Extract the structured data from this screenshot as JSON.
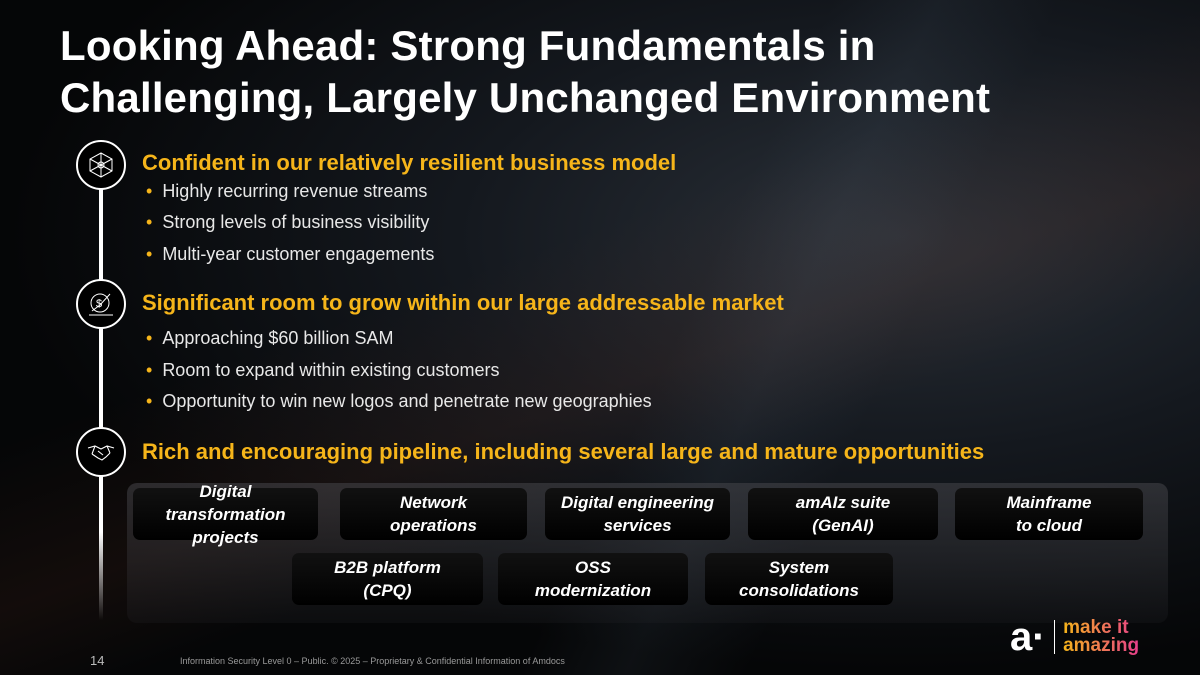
{
  "title_line1": "Looking Ahead: Strong Fundamentals in",
  "title_line2": "Challenging, Largely Unchanged Environment",
  "sections": [
    {
      "icon": "network-icon",
      "heading": "Confident in our relatively resilient business model",
      "bullets": [
        "Highly recurring revenue streams",
        "Strong levels of business visibility",
        "Multi-year customer engagements"
      ]
    },
    {
      "icon": "dollar-growth-icon",
      "heading": "Significant room to grow within our large addressable market",
      "bullets": [
        "Approaching $60 billion SAM",
        "Room to expand within existing customers",
        "Opportunity to win new logos and penetrate new geographies"
      ]
    },
    {
      "icon": "handshake-icon",
      "heading": "Rich and encouraging pipeline, including several large and mature opportunities",
      "bullets": []
    }
  ],
  "opportunities_row1": [
    {
      "l1": "Digital transformation",
      "l2": "projects"
    },
    {
      "l1": "Network",
      "l2": "operations"
    },
    {
      "l1": "Digital engineering",
      "l2": "services"
    },
    {
      "l1": "amAIz suite",
      "l2": "(GenAI)"
    },
    {
      "l1": "Mainframe",
      "l2": "to cloud"
    }
  ],
  "opportunities_row2": [
    {
      "l1": "B2B platform",
      "l2": "(CPQ)"
    },
    {
      "l1": "OSS",
      "l2": "modernization"
    },
    {
      "l1": "System",
      "l2": "consolidations"
    }
  ],
  "footer": {
    "page_number": "14",
    "text": "Information Security Level 0 – Public. © 2025 – Proprietary & Confidential Information of Amdocs"
  },
  "logo": {
    "mark": "a·",
    "line1": "make it",
    "line2": "amazing"
  },
  "colors": {
    "accent": "#f6b51a",
    "background": "#000000",
    "logo_gradient_end": "#e83e8c"
  }
}
